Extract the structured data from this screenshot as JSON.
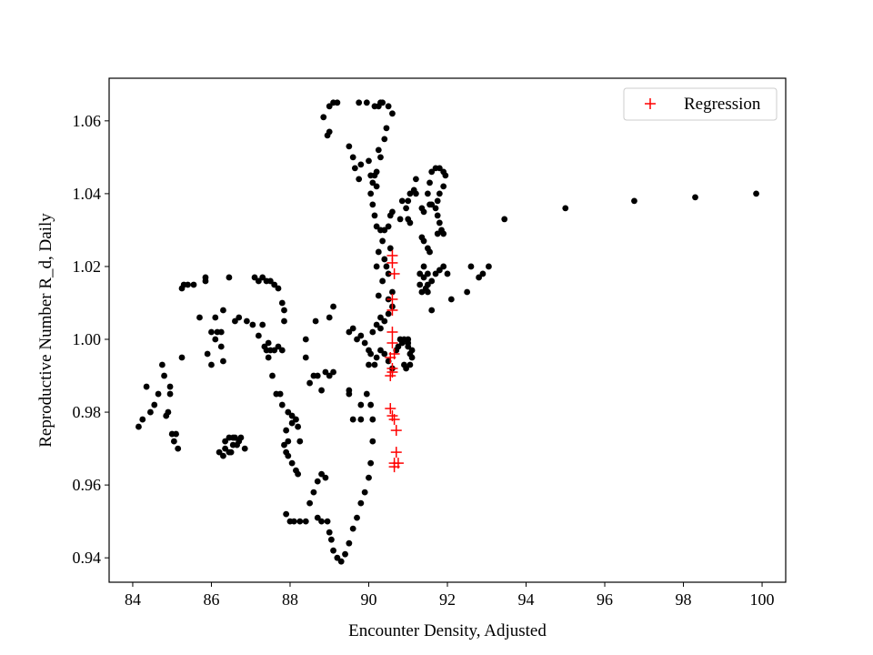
{
  "chart_data": {
    "type": "scatter",
    "title": "",
    "xlabel": "Encounter Density, Adjusted",
    "ylabel": "Reproductive Number R_d, Daily",
    "xlim": [
      83.4,
      100.6
    ],
    "ylim": [
      0.9333,
      1.0717
    ],
    "xticks": [
      84,
      86,
      88,
      90,
      92,
      94,
      96,
      98,
      100
    ],
    "yticks": [
      0.94,
      0.96,
      0.98,
      1.0,
      1.02,
      1.04,
      1.06
    ],
    "xtick_labels": [
      "84",
      "86",
      "88",
      "90",
      "92",
      "94",
      "96",
      "98",
      "100"
    ],
    "ytick_labels": [
      "0.94",
      "0.96",
      "0.98",
      "1.00",
      "1.02",
      "1.04",
      "1.06"
    ],
    "grid": false,
    "legend_position": "top-right",
    "series": [
      {
        "marker": "dot",
        "color": "#000000",
        "points": [
          [
            84.15,
            0.976
          ],
          [
            84.25,
            0.978
          ],
          [
            84.35,
            0.987
          ],
          [
            84.45,
            0.98
          ],
          [
            84.55,
            0.982
          ],
          [
            84.65,
            0.985
          ],
          [
            84.75,
            0.993
          ],
          [
            84.8,
            0.99
          ],
          [
            84.85,
            0.979
          ],
          [
            84.95,
            0.987
          ],
          [
            84.95,
            0.985
          ],
          [
            84.9,
            0.98
          ],
          [
            85.0,
            0.974
          ],
          [
            85.1,
            0.974
          ],
          [
            85.15,
            0.97
          ],
          [
            85.05,
            0.972
          ],
          [
            85.25,
            0.995
          ],
          [
            85.25,
            1.014
          ],
          [
            85.3,
            1.015
          ],
          [
            85.4,
            1.015
          ],
          [
            85.55,
            1.015
          ],
          [
            85.7,
            1.006
          ],
          [
            85.85,
            1.016
          ],
          [
            85.85,
            1.017
          ],
          [
            86.0,
            1.002
          ],
          [
            86.1,
            1.006
          ],
          [
            86.15,
            1.002
          ],
          [
            86.25,
            1.002
          ],
          [
            85.9,
            0.996
          ],
          [
            86.0,
            0.993
          ],
          [
            86.1,
            1.0
          ],
          [
            86.25,
            0.998
          ],
          [
            86.3,
            1.008
          ],
          [
            86.45,
            1.017
          ],
          [
            86.6,
            1.005
          ],
          [
            86.7,
            1.006
          ],
          [
            86.9,
            1.005
          ],
          [
            87.05,
            1.004
          ],
          [
            86.3,
            0.994
          ],
          [
            86.2,
            0.969
          ],
          [
            86.3,
            0.968
          ],
          [
            86.35,
            0.972
          ],
          [
            86.45,
            0.973
          ],
          [
            86.55,
            0.973
          ],
          [
            86.65,
            0.971
          ],
          [
            86.7,
            0.972
          ],
          [
            86.75,
            0.973
          ],
          [
            86.45,
            0.969
          ],
          [
            86.55,
            0.971
          ],
          [
            86.5,
            0.969
          ],
          [
            86.85,
            0.97
          ],
          [
            86.6,
            0.973
          ],
          [
            86.35,
            0.97
          ],
          [
            87.1,
            1.017
          ],
          [
            87.2,
            1.016
          ],
          [
            87.3,
            1.017
          ],
          [
            87.4,
            1.016
          ],
          [
            87.5,
            1.016
          ],
          [
            87.6,
            1.015
          ],
          [
            87.7,
            1.014
          ],
          [
            87.8,
            1.01
          ],
          [
            87.85,
            1.008
          ],
          [
            87.85,
            1.005
          ],
          [
            87.2,
            1.001
          ],
          [
            87.3,
            1.004
          ],
          [
            87.4,
            0.997
          ],
          [
            87.45,
            0.995
          ],
          [
            87.5,
            0.997
          ],
          [
            87.6,
            0.997
          ],
          [
            87.7,
            0.998
          ],
          [
            87.8,
            0.997
          ],
          [
            87.35,
            0.998
          ],
          [
            87.45,
            0.999
          ],
          [
            87.55,
            0.99
          ],
          [
            87.65,
            0.985
          ],
          [
            87.8,
            0.982
          ],
          [
            87.95,
            0.98
          ],
          [
            88.05,
            0.979
          ],
          [
            87.75,
            0.985
          ],
          [
            87.9,
            0.975
          ],
          [
            87.95,
            0.972
          ],
          [
            88.05,
            0.977
          ],
          [
            88.15,
            0.978
          ],
          [
            88.2,
            0.976
          ],
          [
            88.25,
            0.972
          ],
          [
            87.85,
            0.971
          ],
          [
            87.9,
            0.969
          ],
          [
            87.95,
            0.968
          ],
          [
            88.05,
            0.966
          ],
          [
            88.15,
            0.964
          ],
          [
            88.2,
            0.963
          ],
          [
            87.9,
            0.952
          ],
          [
            88.0,
            0.95
          ],
          [
            88.1,
            0.95
          ],
          [
            88.25,
            0.95
          ],
          [
            88.4,
            0.95
          ],
          [
            88.5,
            0.955
          ],
          [
            88.6,
            0.958
          ],
          [
            88.7,
            0.961
          ],
          [
            88.8,
            0.963
          ],
          [
            88.9,
            0.962
          ],
          [
            88.7,
            0.951
          ],
          [
            88.8,
            0.95
          ],
          [
            88.95,
            0.95
          ],
          [
            89.0,
            0.947
          ],
          [
            89.05,
            0.945
          ],
          [
            89.1,
            0.942
          ],
          [
            89.2,
            0.94
          ],
          [
            89.3,
            0.939
          ],
          [
            89.4,
            0.941
          ],
          [
            89.5,
            0.944
          ],
          [
            89.6,
            0.948
          ],
          [
            89.7,
            0.951
          ],
          [
            89.8,
            0.955
          ],
          [
            89.9,
            0.958
          ],
          [
            90.0,
            0.962
          ],
          [
            90.05,
            0.966
          ],
          [
            90.1,
            0.972
          ],
          [
            90.1,
            0.978
          ],
          [
            90.05,
            0.982
          ],
          [
            89.95,
            0.985
          ],
          [
            89.8,
            0.978
          ],
          [
            89.6,
            0.978
          ],
          [
            89.5,
            0.985
          ],
          [
            89.8,
            0.982
          ],
          [
            88.4,
            0.995
          ],
          [
            88.5,
            0.988
          ],
          [
            88.6,
            0.99
          ],
          [
            88.7,
            0.99
          ],
          [
            88.8,
            0.986
          ],
          [
            88.9,
            0.991
          ],
          [
            89.0,
            0.99
          ],
          [
            89.1,
            0.991
          ],
          [
            88.4,
            1.0
          ],
          [
            88.65,
            1.005
          ],
          [
            89.0,
            1.006
          ],
          [
            89.1,
            1.009
          ],
          [
            89.5,
            0.986
          ],
          [
            89.5,
            1.002
          ],
          [
            89.6,
            1.003
          ],
          [
            89.7,
            1.0
          ],
          [
            89.8,
            1.001
          ],
          [
            89.9,
            0.999
          ],
          [
            90.0,
            0.997
          ],
          [
            90.1,
            1.002
          ],
          [
            90.2,
            1.004
          ],
          [
            90.3,
            1.006
          ],
          [
            90.0,
            0.993
          ],
          [
            90.05,
            0.996
          ],
          [
            90.15,
            0.993
          ],
          [
            90.2,
            0.995
          ],
          [
            90.3,
            0.997
          ],
          [
            90.4,
            0.996
          ],
          [
            90.5,
            0.994
          ],
          [
            90.6,
            0.992
          ],
          [
            90.7,
            0.997
          ],
          [
            90.8,
            1.0
          ],
          [
            90.9,
            1.0
          ],
          [
            91.0,
            0.998
          ],
          [
            91.05,
            0.996
          ],
          [
            90.9,
            0.993
          ],
          [
            90.95,
            0.992
          ],
          [
            91.05,
            0.993
          ],
          [
            91.1,
            0.995
          ],
          [
            91.1,
            0.997
          ],
          [
            90.75,
            0.998
          ],
          [
            90.85,
            0.999
          ],
          [
            91.0,
            1.0
          ],
          [
            91.0,
            0.999
          ],
          [
            90.3,
            1.003
          ],
          [
            90.4,
            1.005
          ],
          [
            90.5,
            1.007
          ],
          [
            90.5,
            1.011
          ],
          [
            90.6,
            1.009
          ],
          [
            90.6,
            1.013
          ],
          [
            90.45,
            1.02
          ],
          [
            90.4,
            1.022
          ],
          [
            90.5,
            1.018
          ],
          [
            90.55,
            1.025
          ],
          [
            90.35,
            1.016
          ],
          [
            90.25,
            1.012
          ],
          [
            90.2,
            1.02
          ],
          [
            90.25,
            1.024
          ],
          [
            90.35,
            1.027
          ],
          [
            90.4,
            1.03
          ],
          [
            90.5,
            1.031
          ],
          [
            90.55,
            1.034
          ],
          [
            90.6,
            1.035
          ],
          [
            90.1,
            1.037
          ],
          [
            90.05,
            1.04
          ],
          [
            90.2,
            1.042
          ],
          [
            90.15,
            1.034
          ],
          [
            90.2,
            1.031
          ],
          [
            90.3,
            1.03
          ],
          [
            90.05,
            1.045
          ],
          [
            90.0,
            1.049
          ],
          [
            90.15,
            1.045
          ],
          [
            88.85,
            1.061
          ],
          [
            89.0,
            1.064
          ],
          [
            89.1,
            1.065
          ],
          [
            89.2,
            1.065
          ],
          [
            89.0,
            1.057
          ],
          [
            88.95,
            1.056
          ],
          [
            89.5,
            1.053
          ],
          [
            89.6,
            1.05
          ],
          [
            89.65,
            1.047
          ],
          [
            89.75,
            1.044
          ],
          [
            89.8,
            1.048
          ],
          [
            89.75,
            1.065
          ],
          [
            89.95,
            1.065
          ],
          [
            90.15,
            1.064
          ],
          [
            90.35,
            1.065
          ],
          [
            90.5,
            1.064
          ],
          [
            90.6,
            1.062
          ],
          [
            90.45,
            1.058
          ],
          [
            90.4,
            1.055
          ],
          [
            90.3,
            1.05
          ],
          [
            90.25,
            1.052
          ],
          [
            90.2,
            1.046
          ],
          [
            90.1,
            1.043
          ],
          [
            90.3,
            1.065
          ],
          [
            90.25,
            1.064
          ],
          [
            91.0,
            1.038
          ],
          [
            91.05,
            1.04
          ],
          [
            91.15,
            1.041
          ],
          [
            91.2,
            1.04
          ],
          [
            91.2,
            1.044
          ],
          [
            91.35,
            1.036
          ],
          [
            91.4,
            1.035
          ],
          [
            90.95,
            1.036
          ],
          [
            91.0,
            1.033
          ],
          [
            91.05,
            1.032
          ],
          [
            90.85,
            1.038
          ],
          [
            90.8,
            1.033
          ],
          [
            91.55,
            1.037
          ],
          [
            91.5,
            1.04
          ],
          [
            91.55,
            1.043
          ],
          [
            91.6,
            1.046
          ],
          [
            91.7,
            1.047
          ],
          [
            91.8,
            1.047
          ],
          [
            91.9,
            1.046
          ],
          [
            91.95,
            1.045
          ],
          [
            91.9,
            1.042
          ],
          [
            91.8,
            1.04
          ],
          [
            91.75,
            1.038
          ],
          [
            91.7,
            1.036
          ],
          [
            91.75,
            1.034
          ],
          [
            91.8,
            1.032
          ],
          [
            91.85,
            1.03
          ],
          [
            91.9,
            1.029
          ],
          [
            91.75,
            1.029
          ],
          [
            91.6,
            1.037
          ],
          [
            91.35,
            1.028
          ],
          [
            91.4,
            1.027
          ],
          [
            91.5,
            1.025
          ],
          [
            91.55,
            1.024
          ],
          [
            91.4,
            1.02
          ],
          [
            91.3,
            1.018
          ],
          [
            91.4,
            1.017
          ],
          [
            91.5,
            1.015
          ],
          [
            91.6,
            1.016
          ],
          [
            91.7,
            1.018
          ],
          [
            91.8,
            1.019
          ],
          [
            91.9,
            1.02
          ],
          [
            91.5,
            1.018
          ],
          [
            91.5,
            1.013
          ],
          [
            91.35,
            1.013
          ],
          [
            91.45,
            1.014
          ],
          [
            91.3,
            1.015
          ],
          [
            91.6,
            1.008
          ],
          [
            92.0,
            1.018
          ],
          [
            92.1,
            1.011
          ],
          [
            92.5,
            1.013
          ],
          [
            92.6,
            1.02
          ],
          [
            92.8,
            1.017
          ],
          [
            92.9,
            1.018
          ],
          [
            93.05,
            1.02
          ],
          [
            93.45,
            1.033
          ],
          [
            95.0,
            1.036
          ],
          [
            96.75,
            1.038
          ],
          [
            98.3,
            1.039
          ],
          [
            99.85,
            1.04
          ]
        ]
      },
      {
        "name": "Regression",
        "marker": "plus",
        "color": "#ff0000",
        "points": [
          [
            90.6,
            1.023
          ],
          [
            90.6,
            1.021
          ],
          [
            90.65,
            1.018
          ],
          [
            90.6,
            1.011
          ],
          [
            90.6,
            1.008
          ],
          [
            90.6,
            1.002
          ],
          [
            90.6,
            0.999
          ],
          [
            90.65,
            0.996
          ],
          [
            90.55,
            0.995
          ],
          [
            90.6,
            0.991
          ],
          [
            90.55,
            0.99
          ],
          [
            90.6,
            0.992
          ],
          [
            90.55,
            0.981
          ],
          [
            90.6,
            0.979
          ],
          [
            90.65,
            0.978
          ],
          [
            90.7,
            0.975
          ],
          [
            90.7,
            0.969
          ],
          [
            90.65,
            0.966
          ],
          [
            90.75,
            0.966
          ],
          [
            90.65,
            0.965
          ]
        ]
      }
    ]
  }
}
